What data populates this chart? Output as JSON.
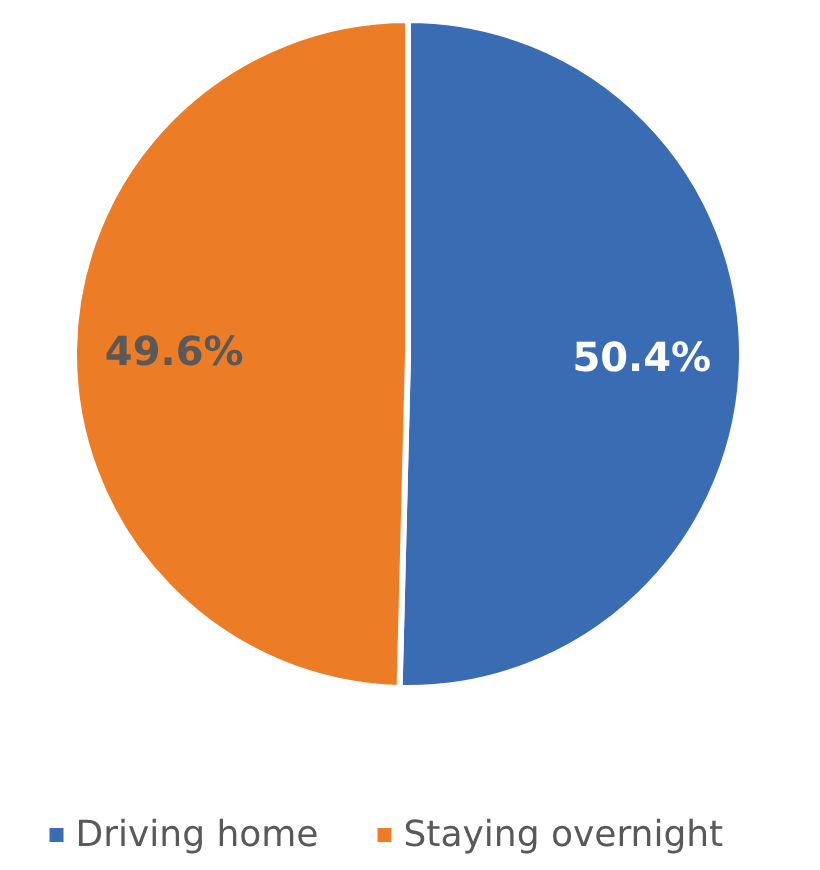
{
  "chart_data": {
    "type": "pie",
    "categories": [
      "Driving home",
      "Staying overnight"
    ],
    "values": [
      50.4,
      49.6
    ],
    "colors": [
      "#3a6cb4",
      "#ec7c25"
    ],
    "value_labels": [
      "50.4%",
      "49.6%"
    ],
    "legend": "bottom"
  }
}
